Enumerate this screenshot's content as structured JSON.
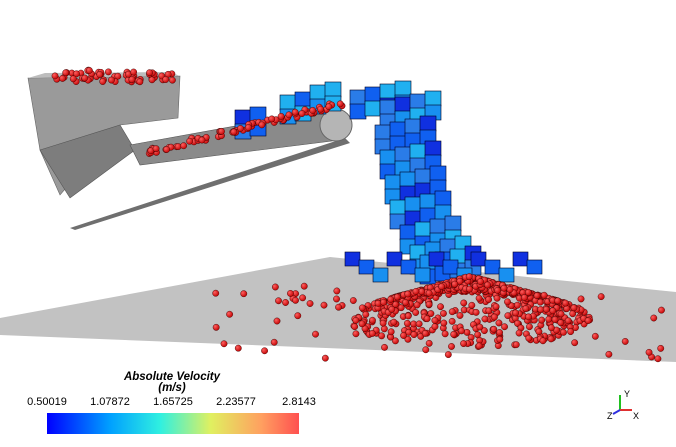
{
  "legend": {
    "title": "Absolute Velocity",
    "unit": "(m/s)",
    "ticks": [
      "0.50019",
      "1.07872",
      "1.65725",
      "2.23577",
      "2.8143"
    ]
  },
  "axes": {
    "y": "Y",
    "z": "Z",
    "x": "X"
  }
}
